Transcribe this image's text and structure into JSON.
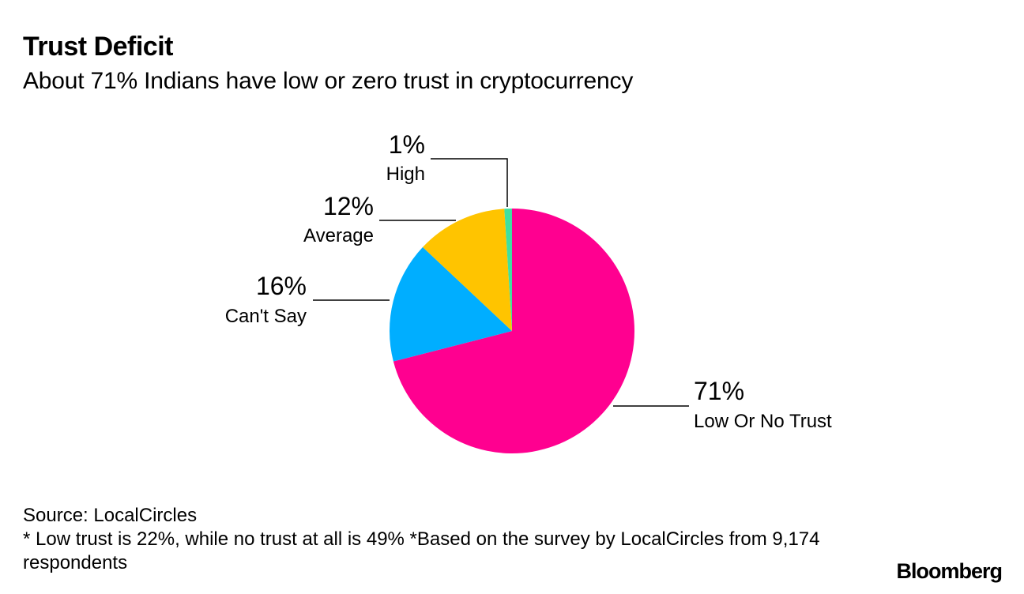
{
  "title": "Trust Deficit",
  "subtitle": "About 71% Indians have low or zero trust in cryptocurrency",
  "chart_data": {
    "type": "pie",
    "start_angle_deg": 0,
    "direction": "clockwise",
    "slices": [
      {
        "label": "Low Or No Trust",
        "value": 71,
        "value_label": "71%",
        "color": "#ff0090"
      },
      {
        "label": "Can't Say",
        "value": 16,
        "value_label": "16%",
        "color": "#00aeff"
      },
      {
        "label": "Average",
        "value": 12,
        "value_label": "12%",
        "color": "#ffc400"
      },
      {
        "label": "High",
        "value": 1,
        "value_label": "1%",
        "color": "#40e0a0"
      }
    ]
  },
  "footer": {
    "source": "Source: LocalCircles",
    "note": "* Low trust is 22%, while no trust at all is 49% *Based on the survey by LocalCircles from 9,174 respondents"
  },
  "brand": "Bloomberg"
}
